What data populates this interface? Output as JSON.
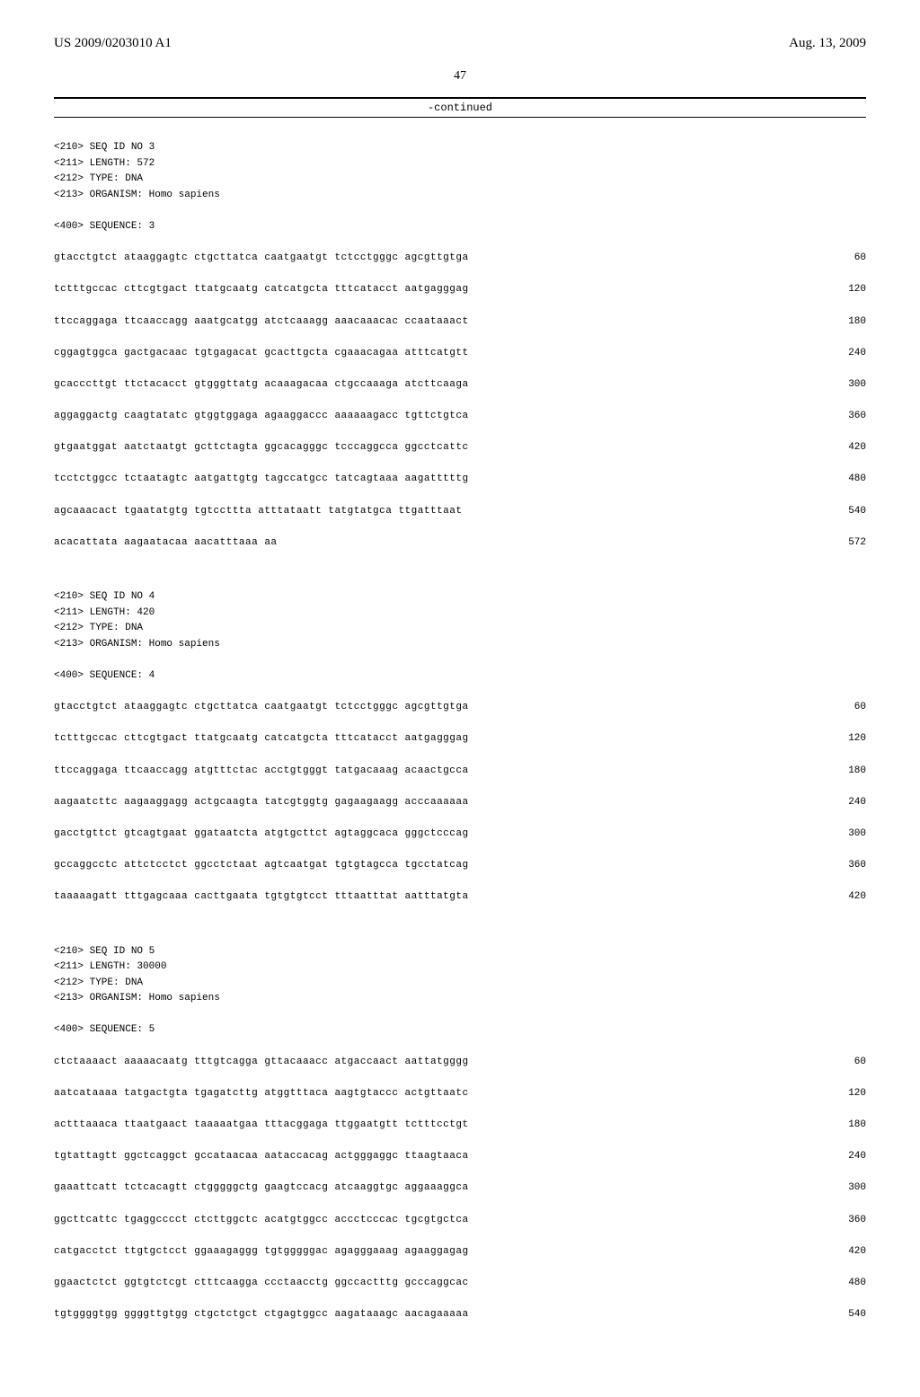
{
  "header": {
    "doc_number": "US 2009/0203010 A1",
    "date": "Aug. 13, 2009",
    "page": "47",
    "continued": "-continued"
  },
  "blocks": [
    {
      "headers": [
        "<210> SEQ ID NO 3",
        "<211> LENGTH: 572",
        "<212> TYPE: DNA",
        "<213> ORGANISM: Homo sapiens",
        "",
        "<400> SEQUENCE: 3"
      ],
      "rows": [
        {
          "seq": "gtacctgtct ataaggagtc ctgcttatca caatgaatgt tctcctgggc agcgttgtga",
          "pos": "60"
        },
        {
          "seq": "tctttgccac cttcgtgact ttatgcaatg catcatgcta tttcatacct aatgagggag",
          "pos": "120"
        },
        {
          "seq": "ttccaggaga ttcaaccagg aaatgcatgg atctcaaagg aaacaaacac ccaataaact",
          "pos": "180"
        },
        {
          "seq": "cggagtggca gactgacaac tgtgagacat gcacttgcta cgaaacagaa atttcatgtt",
          "pos": "240"
        },
        {
          "seq": "gcacccttgt ttctacacct gtgggttatg acaaagacaa ctgccaaaga atcttcaaga",
          "pos": "300"
        },
        {
          "seq": "aggaggactg caagtatatc gtggtggaga agaaggaccc aaaaaagacc tgttctgtca",
          "pos": "360"
        },
        {
          "seq": "gtgaatggat aatctaatgt gcttctagta ggcacagggc tcccaggcca ggcctcattc",
          "pos": "420"
        },
        {
          "seq": "tcctctggcc tctaatagtc aatgattgtg tagccatgcc tatcagtaaa aagatttttg",
          "pos": "480"
        },
        {
          "seq": "agcaaacact tgaatatgtg tgtccttta atttataatt tatgtatgca ttgatttaat",
          "pos": "540"
        },
        {
          "seq": "acacattata aagaatacaa aacatttaaa aa",
          "pos": "572"
        }
      ]
    },
    {
      "headers": [
        "<210> SEQ ID NO 4",
        "<211> LENGTH: 420",
        "<212> TYPE: DNA",
        "<213> ORGANISM: Homo sapiens",
        "",
        "<400> SEQUENCE: 4"
      ],
      "rows": [
        {
          "seq": "gtacctgtct ataaggagtc ctgcttatca caatgaatgt tctcctgggc agcgttgtga",
          "pos": "60"
        },
        {
          "seq": "tctttgccac cttcgtgact ttatgcaatg catcatgcta tttcatacct aatgagggag",
          "pos": "120"
        },
        {
          "seq": "ttccaggaga ttcaaccagg atgtttctac acctgtgggt tatgacaaag acaactgcca",
          "pos": "180"
        },
        {
          "seq": "aagaatcttc aagaaggagg actgcaagta tatcgtggtg gagaagaagg acccaaaaaa",
          "pos": "240"
        },
        {
          "seq": "gacctgttct gtcagtgaat ggataatcta atgtgcttct agtaggcaca gggctcccag",
          "pos": "300"
        },
        {
          "seq": "gccaggcctc attctcctct ggcctctaat agtcaatgat tgtgtagcca tgcctatcag",
          "pos": "360"
        },
        {
          "seq": "taaaaagatt tttgagcaaa cacttgaata tgtgtgtcct tttaatttat aatttatgta",
          "pos": "420"
        }
      ]
    },
    {
      "headers": [
        "<210> SEQ ID NO 5",
        "<211> LENGTH: 30000",
        "<212> TYPE: DNA",
        "<213> ORGANISM: Homo sapiens",
        "",
        "<400> SEQUENCE: 5"
      ],
      "rows": [
        {
          "seq": "ctctaaaact aaaaacaatg tttgtcagga gttacaaacc atgaccaact aattatgggg",
          "pos": "60"
        },
        {
          "seq": "aatcataaaa tatgactgta tgagatcttg atggtttaca aagtgtaccc actgttaatc",
          "pos": "120"
        },
        {
          "seq": "actttaaaca ttaatgaact taaaaatgaa tttacggaga ttggaatgtt tctttcctgt",
          "pos": "180"
        },
        {
          "seq": "tgtattagtt ggctcaggct gccataacaa aataccacag actgggaggc ttaagtaaca",
          "pos": "240"
        },
        {
          "seq": "gaaattcatt tctcacagtt ctgggggctg gaagtccacg atcaaggtgc aggaaaggca",
          "pos": "300"
        },
        {
          "seq": "ggcttcattc tgaggcccct ctcttggctc acatgtggcc accctcccac tgcgtgctca",
          "pos": "360"
        },
        {
          "seq": "catgacctct ttgtgctcct ggaaagaggg tgtgggggac agagggaaag agaaggagag",
          "pos": "420"
        },
        {
          "seq": "ggaactctct ggtgtctcgt ctttcaagga ccctaacctg ggccactttg gcccaggcac",
          "pos": "480"
        },
        {
          "seq": "tgtggggtgg ggggttgtgg ctgctctgct ctgagtggcc aagataaagc aacagaaaaa",
          "pos": "540"
        }
      ]
    }
  ]
}
